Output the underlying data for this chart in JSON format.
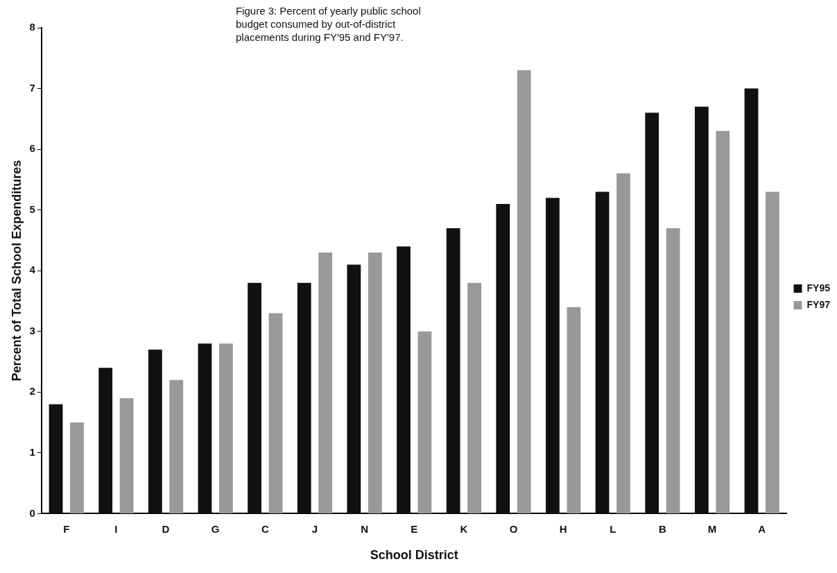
{
  "chart_data": {
    "type": "bar",
    "title": "Figure 3: Percent of yearly public school budget consumed by out-of-district placements during FY'95 and FY'97.",
    "xlabel": "School District",
    "ylabel": "Percent of Total School Expenditures",
    "categories": [
      "F",
      "I",
      "D",
      "G",
      "C",
      "J",
      "N",
      "E",
      "K",
      "O",
      "H",
      "L",
      "B",
      "M",
      "A"
    ],
    "series": [
      {
        "name": "FY95",
        "color": "#111111",
        "values": [
          1.8,
          2.4,
          2.7,
          2.8,
          3.8,
          3.8,
          4.1,
          4.4,
          4.7,
          5.1,
          5.2,
          5.3,
          6.6,
          6.7,
          7.0
        ]
      },
      {
        "name": "FY97",
        "color": "#999999",
        "values": [
          1.5,
          1.9,
          2.2,
          2.8,
          3.3,
          4.3,
          4.3,
          3.0,
          3.8,
          7.3,
          3.4,
          5.6,
          4.7,
          6.3,
          5.3
        ]
      }
    ],
    "ylim": [
      0,
      8
    ],
    "yticks": [
      0,
      1,
      2,
      3,
      4,
      5,
      6,
      7,
      8
    ],
    "grid": false,
    "legend": "right"
  }
}
